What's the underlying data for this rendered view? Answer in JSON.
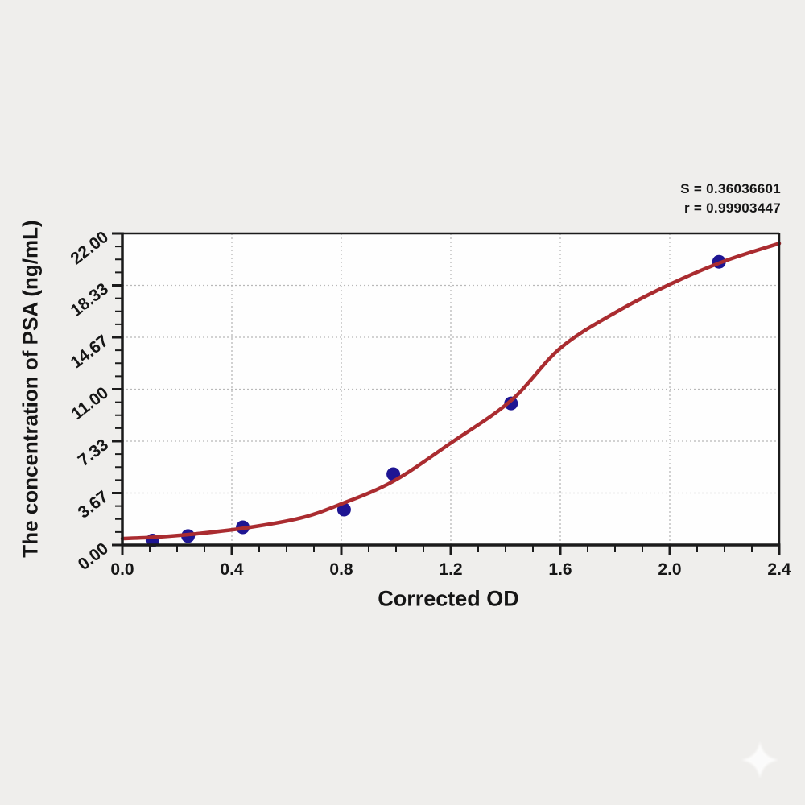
{
  "colors": {
    "background": "#efeeec",
    "plot_background": "#fefefe",
    "axis": "#1b1b1b",
    "grid": "#b9b9b9",
    "tick_label": "#161616",
    "curve": "#aa2c30",
    "marker": "#1e1593",
    "watermark": "#ffffff"
  },
  "stats": {
    "s_line": "S = 0.36036601",
    "r_line": "r = 0.99903447"
  },
  "chart_data": {
    "type": "scatter",
    "title": "",
    "xlabel": "Corrected OD",
    "ylabel": "The concentration of PSA (ng/mL)",
    "xlim": [
      0.0,
      2.4
    ],
    "ylim": [
      0.0,
      22.0
    ],
    "x_tick_labels": [
      "0.0",
      "0.4",
      "0.8",
      "1.2",
      "1.6",
      "2.0",
      "2.4"
    ],
    "y_tick_labels": [
      "0.00",
      "3.67",
      "7.33",
      "11.00",
      "14.67",
      "18.33",
      "22.00"
    ],
    "x_minor_step": 0.1,
    "y_minor_divisions": 4,
    "grid_style": "dotted-major",
    "legend": "none",
    "series": [
      {
        "name": "standard-points",
        "type": "scatter",
        "marker": "circle",
        "color": "#1e1593",
        "x": [
          0.11,
          0.24,
          0.44,
          0.81,
          0.99,
          1.42,
          2.18
        ],
        "y": [
          0.31,
          0.63,
          1.25,
          2.5,
          5.0,
          10.0,
          20.0
        ]
      },
      {
        "name": "fit-curve",
        "type": "line",
        "color": "#aa2c30",
        "x": [
          0.0,
          0.12,
          0.25,
          0.45,
          0.65,
          0.8,
          0.99,
          1.2,
          1.42,
          1.6,
          1.8,
          2.0,
          2.2,
          2.4
        ],
        "y": [
          0.45,
          0.55,
          0.75,
          1.2,
          1.9,
          2.9,
          4.5,
          7.2,
          10.2,
          13.9,
          16.4,
          18.4,
          20.05,
          21.3
        ]
      }
    ],
    "fit_stats": {
      "S": "0.36036601",
      "r": "0.99903447"
    }
  },
  "watermark": {
    "icon": "four-point-star"
  }
}
